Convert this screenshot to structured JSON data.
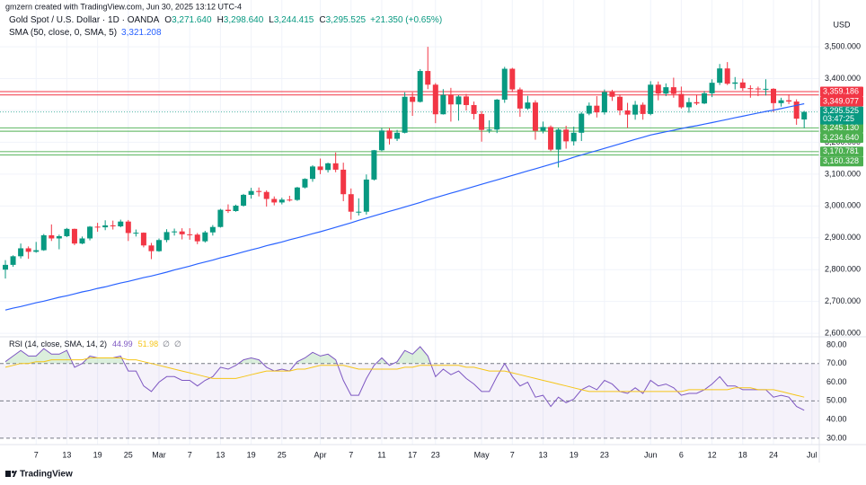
{
  "header": {
    "author_line": "gmzern created with TradingView.com, Jun 30, 2025 13:12 UTC-4",
    "footer": "TradingView"
  },
  "chart_data": [
    {
      "type": "candlestick",
      "title": "Gold Spot / U.S. Dollar · 1D · OANDA",
      "ohlc_labels": [
        {
          "key": "O",
          "text": "3,271.640"
        },
        {
          "key": "H",
          "text": "3,298.640"
        },
        {
          "key": "L",
          "text": "3,244.415"
        },
        {
          "key": "C",
          "text": "3,295.525"
        },
        {
          "key": "",
          "text": "+21.350 (+0.65%)"
        }
      ],
      "currency": "USD",
      "up_color": "#089981",
      "down_color": "#f23645",
      "x": [
        "2025-02-03",
        "2025-02-04",
        "2025-02-05",
        "2025-02-06",
        "2025-02-07",
        "2025-02-10",
        "2025-02-11",
        "2025-02-12",
        "2025-02-13",
        "2025-02-14",
        "2025-02-17",
        "2025-02-18",
        "2025-02-19",
        "2025-02-20",
        "2025-02-21",
        "2025-02-24",
        "2025-02-25",
        "2025-02-26",
        "2025-02-27",
        "2025-02-28",
        "2025-03-03",
        "2025-03-04",
        "2025-03-05",
        "2025-03-06",
        "2025-03-07",
        "2025-03-10",
        "2025-03-11",
        "2025-03-12",
        "2025-03-13",
        "2025-03-14",
        "2025-03-17",
        "2025-03-18",
        "2025-03-19",
        "2025-03-20",
        "2025-03-21",
        "2025-03-24",
        "2025-03-25",
        "2025-03-26",
        "2025-03-27",
        "2025-03-28",
        "2025-03-31",
        "2025-04-01",
        "2025-04-02",
        "2025-04-03",
        "2025-04-04",
        "2025-04-07",
        "2025-04-08",
        "2025-04-09",
        "2025-04-10",
        "2025-04-11",
        "2025-04-14",
        "2025-04-15",
        "2025-04-16",
        "2025-04-17",
        "2025-04-21",
        "2025-04-22",
        "2025-04-23",
        "2025-04-24",
        "2025-04-25",
        "2025-04-28",
        "2025-04-29",
        "2025-04-30",
        "2025-05-01",
        "2025-05-02",
        "2025-05-05",
        "2025-05-06",
        "2025-05-07",
        "2025-05-08",
        "2025-05-09",
        "2025-05-12",
        "2025-05-13",
        "2025-05-14",
        "2025-05-15",
        "2025-05-16",
        "2025-05-19",
        "2025-05-20",
        "2025-05-21",
        "2025-05-22",
        "2025-05-23",
        "2025-05-26",
        "2025-05-27",
        "2025-05-28",
        "2025-05-29",
        "2025-05-30",
        "2025-06-02",
        "2025-06-03",
        "2025-06-04",
        "2025-06-05",
        "2025-06-06",
        "2025-06-09",
        "2025-06-10",
        "2025-06-11",
        "2025-06-12",
        "2025-06-13",
        "2025-06-16",
        "2025-06-17",
        "2025-06-18",
        "2025-06-19",
        "2025-06-20",
        "2025-06-23",
        "2025-06-24",
        "2025-06-25",
        "2025-06-26",
        "2025-06-27",
        "2025-06-30"
      ],
      "open": [
        2800,
        2815,
        2842,
        2867,
        2856,
        2861,
        2908,
        2898,
        2905,
        2928,
        2882,
        2898,
        2935,
        2933,
        2939,
        2936,
        2951,
        2915,
        2916,
        2876,
        2858,
        2893,
        2918,
        2920,
        2911,
        2910,
        2889,
        2917,
        2934,
        2988,
        2984,
        3001,
        3035,
        3047,
        3044,
        3022,
        3011,
        3020,
        3019,
        3058,
        3085,
        3124,
        3113,
        3134,
        3114,
        3037,
        2982,
        2982,
        3083,
        3175,
        3237,
        3211,
        3230,
        3343,
        3327,
        3424,
        3381,
        3288,
        3349,
        3319,
        3344,
        3317,
        3289,
        3239,
        3240,
        3334,
        3431,
        3366,
        3306,
        3325,
        3236,
        3248,
        3177,
        3240,
        3203,
        3230,
        3290,
        3315,
        3294,
        3358,
        3343,
        3300,
        3287,
        3318,
        3289,
        3381,
        3353,
        3373,
        3352,
        3310,
        3326,
        3322,
        3354,
        3387,
        3432,
        3384,
        3388,
        3370,
        3369,
        3368,
        3368,
        3323,
        3332,
        3328,
        3271.64
      ],
      "high": [
        2830,
        2845,
        2882,
        2873,
        2887,
        2912,
        2942,
        2910,
        2931,
        2929,
        2904,
        2937,
        2947,
        2955,
        2954,
        2957,
        2956,
        2926,
        2917,
        2884,
        2898,
        2927,
        2929,
        2930,
        2930,
        2915,
        2922,
        2940,
        2991,
        3005,
        3004,
        3038,
        3057,
        3058,
        3049,
        3030,
        3026,
        3032,
        3060,
        3087,
        3128,
        3149,
        3136,
        3168,
        3136,
        3055,
        3024,
        3099,
        3176,
        3245,
        3245,
        3239,
        3357,
        3357,
        3430,
        3500,
        3386,
        3367,
        3371,
        3348,
        3352,
        3328,
        3298,
        3269,
        3336,
        3437,
        3434,
        3372,
        3346,
        3332,
        3265,
        3253,
        3245,
        3252,
        3249,
        3295,
        3325,
        3345,
        3366,
        3365,
        3350,
        3324,
        3330,
        3325,
        3392,
        3391,
        3385,
        3403,
        3375,
        3340,
        3349,
        3361,
        3398,
        3446,
        3452,
        3405,
        3400,
        3379,
        3375,
        3398,
        3370,
        3340,
        3350,
        3335,
        3298.64
      ],
      "low": [
        2772,
        2809,
        2835,
        2834,
        2853,
        2859,
        2890,
        2864,
        2902,
        2877,
        2880,
        2892,
        2919,
        2924,
        2926,
        2933,
        2890,
        2904,
        2870,
        2833,
        2856,
        2886,
        2907,
        2895,
        2894,
        2880,
        2885,
        2907,
        2932,
        2978,
        2982,
        2998,
        3023,
        3030,
        2998,
        3002,
        3005,
        3014,
        3016,
        3055,
        3076,
        3100,
        3105,
        3106,
        3015,
        2957,
        2970,
        2973,
        3080,
        3172,
        3193,
        3204,
        3228,
        3283,
        3325,
        3367,
        3260,
        3287,
        3265,
        3268,
        3300,
        3272,
        3202,
        3229,
        3229,
        3324,
        3358,
        3280,
        3302,
        3208,
        3228,
        3172,
        3121,
        3180,
        3190,
        3204,
        3285,
        3278,
        3287,
        3330,
        3285,
        3245,
        3271,
        3271,
        3285,
        3332,
        3345,
        3340,
        3306,
        3293,
        3317,
        3320,
        3342,
        3380,
        3380,
        3366,
        3362,
        3340,
        3345,
        3347,
        3295,
        3312,
        3320,
        3255,
        3244.415
      ],
      "close": [
        2815,
        2842,
        2867,
        2856,
        2861,
        2908,
        2898,
        2905,
        2928,
        2882,
        2898,
        2935,
        2933,
        2939,
        2936,
        2951,
        2915,
        2916,
        2876,
        2858,
        2893,
        2918,
        2920,
        2911,
        2910,
        2889,
        2917,
        2934,
        2988,
        2984,
        3001,
        3035,
        3047,
        3044,
        3022,
        3011,
        3020,
        3019,
        3058,
        3085,
        3124,
        3113,
        3134,
        3114,
        3037,
        2982,
        2982,
        3083,
        3175,
        3237,
        3211,
        3230,
        3343,
        3327,
        3424,
        3381,
        3288,
        3349,
        3319,
        3344,
        3317,
        3289,
        3239,
        3240,
        3334,
        3431,
        3366,
        3306,
        3325,
        3236,
        3248,
        3177,
        3240,
        3203,
        3230,
        3290,
        3315,
        3294,
        3358,
        3343,
        3300,
        3287,
        3318,
        3289,
        3381,
        3353,
        3373,
        3352,
        3310,
        3326,
        3322,
        3354,
        3387,
        3432,
        3384,
        3388,
        3370,
        3369,
        3368,
        3368,
        3323,
        3332,
        3328,
        3274.175,
        3295.525
      ],
      "sma": {
        "name": "SMA (50, close, 0, SMA, 5)",
        "value_label": "3,321.208",
        "color": "#2962ff",
        "values": [
          2673,
          2679,
          2684,
          2690,
          2696,
          2701,
          2707,
          2713,
          2718,
          2724,
          2730,
          2735,
          2741,
          2746,
          2752,
          2758,
          2763,
          2769,
          2775,
          2780,
          2786,
          2792,
          2799,
          2805,
          2811,
          2818,
          2824,
          2830,
          2837,
          2843,
          2849,
          2856,
          2862,
          2868,
          2875,
          2881,
          2887,
          2894,
          2900,
          2906,
          2913,
          2919,
          2926,
          2933,
          2940,
          2947,
          2955,
          2962,
          2969,
          2976,
          2983,
          2990,
          2997,
          3004,
          3011,
          3019,
          3026,
          3033,
          3040,
          3047,
          3054,
          3061,
          3068,
          3075,
          3082,
          3089,
          3096,
          3103,
          3110,
          3117,
          3124,
          3131,
          3138,
          3145,
          3153,
          3160,
          3167,
          3174,
          3181,
          3188,
          3195,
          3202,
          3209,
          3216,
          3223,
          3228,
          3233,
          3238,
          3243,
          3248,
          3252,
          3257,
          3262,
          3267,
          3272,
          3277,
          3282,
          3287,
          3292,
          3297,
          3301,
          3306,
          3311,
          3316,
          3321.208
        ]
      },
      "ylim": [
        2589,
        3647
      ],
      "yticks": [
        {
          "value": 2600,
          "label": "2,600.000"
        },
        {
          "value": 2700,
          "label": "2,700.000"
        },
        {
          "value": 2800,
          "label": "2,800.000"
        },
        {
          "value": 2900,
          "label": "2,900.000"
        },
        {
          "value": 3000,
          "label": "3,000.000"
        },
        {
          "value": 3100,
          "label": "3,100.000"
        },
        {
          "value": 3200,
          "label": "3,200.000"
        },
        {
          "value": 3300,
          "label": "3,300.000"
        },
        {
          "value": 3400,
          "label": "3,400.000"
        },
        {
          "value": 3500,
          "label": "3,500.000"
        }
      ],
      "xticks": [
        {
          "value": "2025-02-07",
          "label": "7"
        },
        {
          "value": "2025-02-13",
          "label": "13"
        },
        {
          "value": "2025-02-19",
          "label": "19"
        },
        {
          "value": "2025-02-25",
          "label": "25"
        },
        {
          "value": "2025-03-03",
          "label": "Mar"
        },
        {
          "value": "2025-03-07",
          "label": "7"
        },
        {
          "value": "2025-03-13",
          "label": "13"
        },
        {
          "value": "2025-03-19",
          "label": "19"
        },
        {
          "value": "2025-03-25",
          "label": "25"
        },
        {
          "value": "2025-04-01",
          "label": "Apr"
        },
        {
          "value": "2025-04-07",
          "label": "7"
        },
        {
          "value": "2025-04-11",
          "label": "11"
        },
        {
          "value": "2025-04-17",
          "label": "17"
        },
        {
          "value": "2025-04-23",
          "label": "23"
        },
        {
          "value": "2025-05-01",
          "label": "May"
        },
        {
          "value": "2025-05-07",
          "label": "7"
        },
        {
          "value": "2025-05-13",
          "label": "13"
        },
        {
          "value": "2025-05-19",
          "label": "19"
        },
        {
          "value": "2025-05-23",
          "label": "23"
        },
        {
          "value": "2025-06-02",
          "label": "Jun"
        },
        {
          "value": "2025-06-06",
          "label": "6"
        },
        {
          "value": "2025-06-12",
          "label": "12"
        },
        {
          "value": "2025-06-18",
          "label": "18"
        },
        {
          "value": "2025-06-24",
          "label": "24"
        },
        {
          "value": "2025-07-01",
          "label": "Jul"
        }
      ],
      "grid": true,
      "levels": [
        {
          "value": 3359.186,
          "label": "3,359.186",
          "color": "#f23645"
        },
        {
          "value": 3349.077,
          "label": "3,349.077",
          "color": "#f23645"
        },
        {
          "value": 3245.13,
          "label": "3,245.130",
          "color": "#4caf50"
        },
        {
          "value": 3234.64,
          "label": "3,234.640",
          "color": "#4caf50"
        },
        {
          "value": 3170.781,
          "label": "3,170.781",
          "color": "#4caf50"
        },
        {
          "value": 3160.328,
          "label": "3,160.328",
          "color": "#4caf50"
        }
      ],
      "last_price": {
        "value": 3295.525,
        "label": "3,295.525",
        "countdown": "03:47:25",
        "color": "#089981"
      }
    },
    {
      "type": "line",
      "title": "RSI (14, close, SMA, 14, 2)",
      "flags": [
        "∅",
        "∅"
      ],
      "series": [
        {
          "color": "#7e57c2",
          "value_label": "44.99",
          "values": [
            71,
            74,
            77,
            74,
            74,
            78,
            75,
            75,
            77,
            68,
            70,
            74,
            73,
            73,
            73,
            74,
            66,
            66,
            58,
            55,
            60,
            63,
            63,
            61,
            61,
            58,
            61,
            63,
            68,
            67,
            69,
            72,
            73,
            72,
            68,
            66,
            67,
            66,
            71,
            73,
            76,
            74,
            75,
            72,
            61,
            53,
            53,
            62,
            69,
            73,
            69,
            71,
            77,
            75,
            79,
            74,
            63,
            67,
            64,
            66,
            62,
            59,
            55,
            55,
            63,
            70,
            63,
            58,
            60,
            52,
            53,
            47,
            52,
            49,
            51,
            56,
            58,
            56,
            61,
            59,
            55,
            54,
            57,
            54,
            61,
            58,
            59,
            57,
            53,
            54,
            54,
            56,
            59,
            63,
            58,
            58,
            56,
            56,
            56,
            56,
            52,
            53,
            52,
            47,
            44.99
          ]
        },
        {
          "color": "#f5c518",
          "value_label": "51.98",
          "values": [
            68,
            69,
            70,
            70,
            71,
            71,
            72,
            72,
            72,
            72,
            72,
            73,
            73,
            73,
            73,
            73,
            72,
            72,
            71,
            70,
            69,
            68,
            67,
            66,
            65,
            64,
            63,
            62,
            62,
            62,
            62,
            63,
            64,
            65,
            66,
            66,
            66,
            66,
            67,
            67,
            68,
            69,
            69,
            69,
            69,
            68,
            67,
            67,
            67,
            67,
            67,
            67,
            68,
            68,
            69,
            69,
            69,
            69,
            69,
            69,
            68,
            68,
            67,
            66,
            66,
            66,
            65,
            64,
            63,
            62,
            61,
            60,
            59,
            58,
            57,
            56,
            55,
            55,
            55,
            55,
            55,
            55,
            55,
            55,
            55,
            55,
            55,
            55,
            55,
            56,
            56,
            56,
            56,
            56,
            56,
            57,
            57,
            57,
            56,
            56,
            56,
            55,
            54,
            53,
            51.98
          ]
        }
      ],
      "ylim": [
        26.6,
        84.3
      ],
      "yticks": [
        {
          "value": 30,
          "label": "30.00"
        },
        {
          "value": 40,
          "label": "40.00"
        },
        {
          "value": 50,
          "label": "50.00"
        },
        {
          "value": 60,
          "label": "60.00"
        },
        {
          "value": 70,
          "label": "70.00"
        },
        {
          "value": 80,
          "label": "80.00"
        }
      ],
      "levels": [
        70,
        50,
        30
      ],
      "band_color": "#7e57c2",
      "overbought_color": "#4caf50"
    }
  ]
}
